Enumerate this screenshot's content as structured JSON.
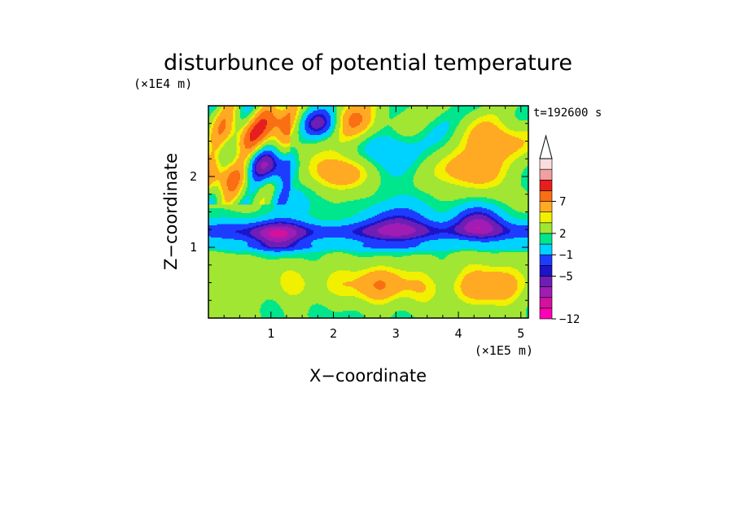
{
  "chart_data": {
    "type": "heatmap",
    "title": "disturbunce of potential temperature",
    "xlabel": "X−coordinate",
    "ylabel": "Z−coordinate",
    "x_unit": "(×1E5 m)",
    "y_unit": "(×1E4 m)",
    "time_label": "t=192600 s",
    "xlim": [
      0,
      5.12
    ],
    "ylim": [
      0,
      3.0
    ],
    "x_ticks": [
      1,
      2,
      3,
      4,
      5
    ],
    "x_tick_labels": [
      "1",
      "2",
      "3",
      "4",
      "5"
    ],
    "y_ticks": [
      1,
      2
    ],
    "y_tick_labels": [
      "1",
      "2"
    ],
    "grid": false,
    "colorbar": {
      "extend": "max",
      "levels": [
        -12,
        -10,
        -8,
        -6,
        -5,
        -3,
        -1,
        0,
        2,
        3,
        5,
        7,
        9,
        11
      ],
      "labels": [
        "−12",
        "−5",
        "−1",
        "2",
        "7"
      ],
      "label_levels": [
        -12,
        -5,
        -1,
        2,
        7
      ],
      "colors": [
        "#ff00b4",
        "#d2119c",
        "#a01cb4",
        "#6e1eb4",
        "#1c14c8",
        "#1e3cff",
        "#00d2ff",
        "#00e68c",
        "#a0e632",
        "#f0f000",
        "#ffaa22",
        "#fa6e14",
        "#e61e1e",
        "#f0a0a0",
        "#fadcdc"
      ]
    },
    "field_features": [
      {
        "x": 1.77,
        "z": 2.75,
        "value": -9.0
      },
      {
        "x": 1.25,
        "z": 2.8,
        "value": 6.0
      },
      {
        "x": 2.33,
        "z": 2.75,
        "value": 6.0
      },
      {
        "x": 0.55,
        "z": 2.6,
        "value": 5.0
      },
      {
        "x": 1.0,
        "z": 2.15,
        "value": -7.0
      },
      {
        "x": 2.05,
        "z": 2.05,
        "value": 5.5
      },
      {
        "x": 1.45,
        "z": 1.65,
        "value": -2.0
      },
      {
        "x": 0.2,
        "z": 2.0,
        "value": 5.0
      },
      {
        "x": 2.8,
        "z": 2.35,
        "value": -3.5
      },
      {
        "x": 4.2,
        "z": 2.1,
        "value": 5.0
      },
      {
        "x": 4.65,
        "z": 2.5,
        "value": 5.0
      },
      {
        "x": 1.1,
        "z": 1.15,
        "value": -7.0
      },
      {
        "x": 3.0,
        "z": 1.3,
        "value": -6.5
      },
      {
        "x": 4.3,
        "z": 1.35,
        "value": -7.0
      },
      {
        "x": 2.8,
        "z": 0.5,
        "value": 3.0
      },
      {
        "x": 4.5,
        "z": 0.45,
        "value": 3.5
      }
    ]
  }
}
